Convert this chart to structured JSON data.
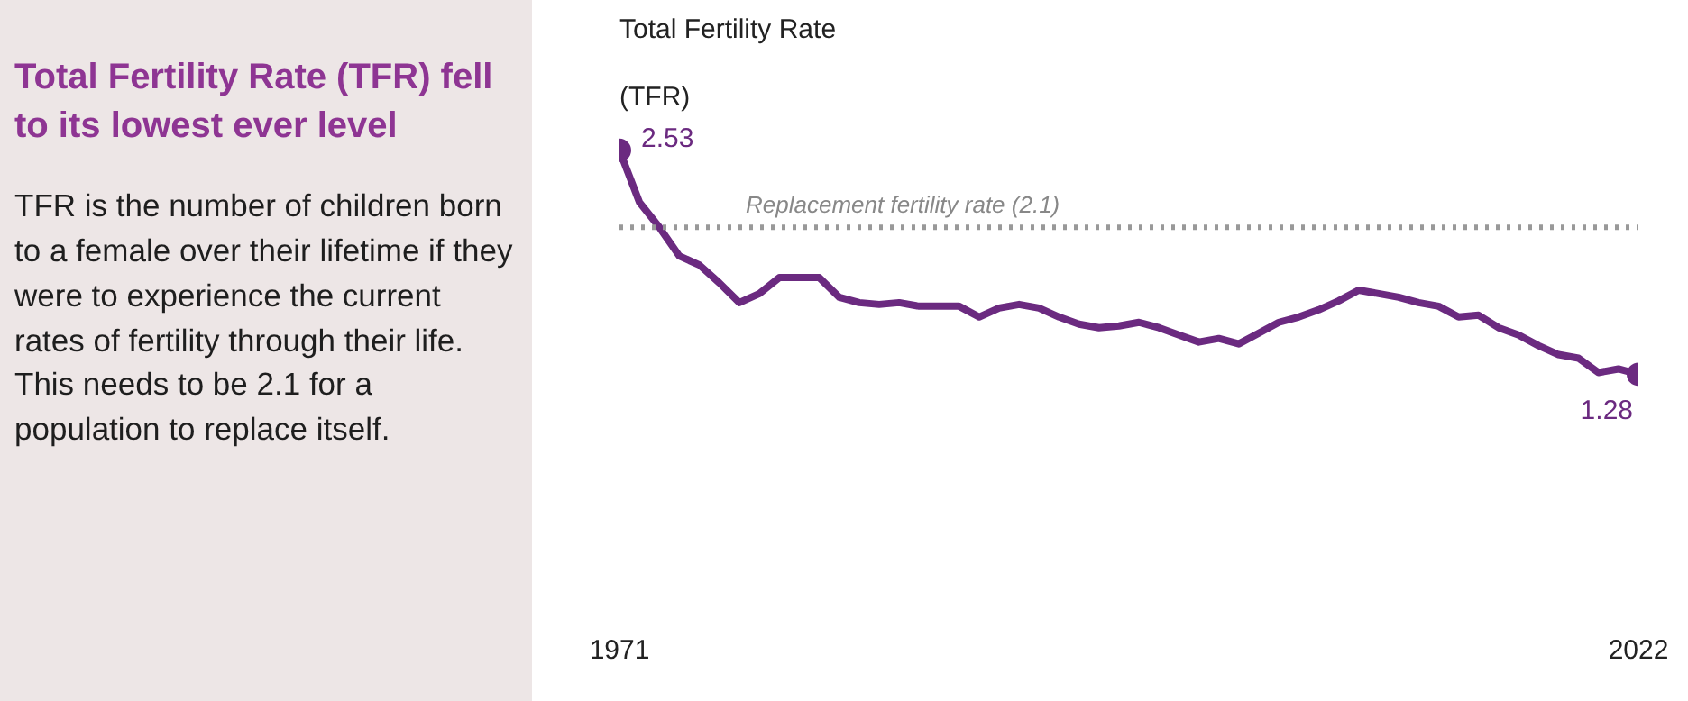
{
  "chart_data": {
    "type": "line",
    "title": "Total Fertility Rate (TFR) fell to its lowest ever level",
    "subtitle": "TFR is the number of children born to a female over their lifetime if they were to experience the current rates of fertility through their life. This needs to be 2.1 for a population to replace itself.",
    "ylabel": "Total Fertility Rate (TFR)",
    "x": [
      1971,
      1972,
      1973,
      1974,
      1975,
      1976,
      1977,
      1978,
      1979,
      1980,
      1981,
      1982,
      1983,
      1984,
      1985,
      1986,
      1987,
      1988,
      1989,
      1990,
      1991,
      1992,
      1993,
      1994,
      1995,
      1996,
      1997,
      1998,
      1999,
      2000,
      2001,
      2002,
      2003,
      2004,
      2005,
      2006,
      2007,
      2008,
      2009,
      2010,
      2011,
      2012,
      2013,
      2014,
      2015,
      2016,
      2017,
      2018,
      2019,
      2020,
      2021,
      2022
    ],
    "series": [
      {
        "color": "#6b2a80",
        "values": [
          2.53,
          2.24,
          2.1,
          1.94,
          1.89,
          1.79,
          1.68,
          1.73,
          1.82,
          1.82,
          1.82,
          1.71,
          1.68,
          1.67,
          1.68,
          1.66,
          1.66,
          1.66,
          1.6,
          1.65,
          1.67,
          1.65,
          1.6,
          1.56,
          1.54,
          1.55,
          1.57,
          1.54,
          1.5,
          1.46,
          1.48,
          1.45,
          1.51,
          1.57,
          1.6,
          1.64,
          1.69,
          1.75,
          1.73,
          1.71,
          1.68,
          1.66,
          1.6,
          1.61,
          1.54,
          1.5,
          1.44,
          1.39,
          1.37,
          1.29,
          1.31,
          1.28
        ],
        "value_labels": [
          "2.53",
          null,
          null,
          null,
          null,
          null,
          null,
          null,
          null,
          null,
          null,
          null,
          null,
          null,
          null,
          null,
          null,
          null,
          null,
          null,
          null,
          null,
          null,
          null,
          null,
          null,
          null,
          null,
          null,
          null,
          null,
          null,
          null,
          null,
          null,
          null,
          null,
          null,
          null,
          null,
          null,
          null,
          null,
          null,
          null,
          null,
          null,
          null,
          null,
          null,
          null,
          "1.28"
        ]
      }
    ],
    "xlim": [
      1971,
      2022
    ],
    "xticks": [
      1971,
      2022
    ],
    "grid": false,
    "tick_labels": "x",
    "line_style": "solid",
    "ref_lines": [
      {
        "axis": "y",
        "value": 2.1,
        "label": "Replacement fertility rate (2.1)",
        "color": "#999999",
        "line_style": "dotted"
      }
    ]
  }
}
